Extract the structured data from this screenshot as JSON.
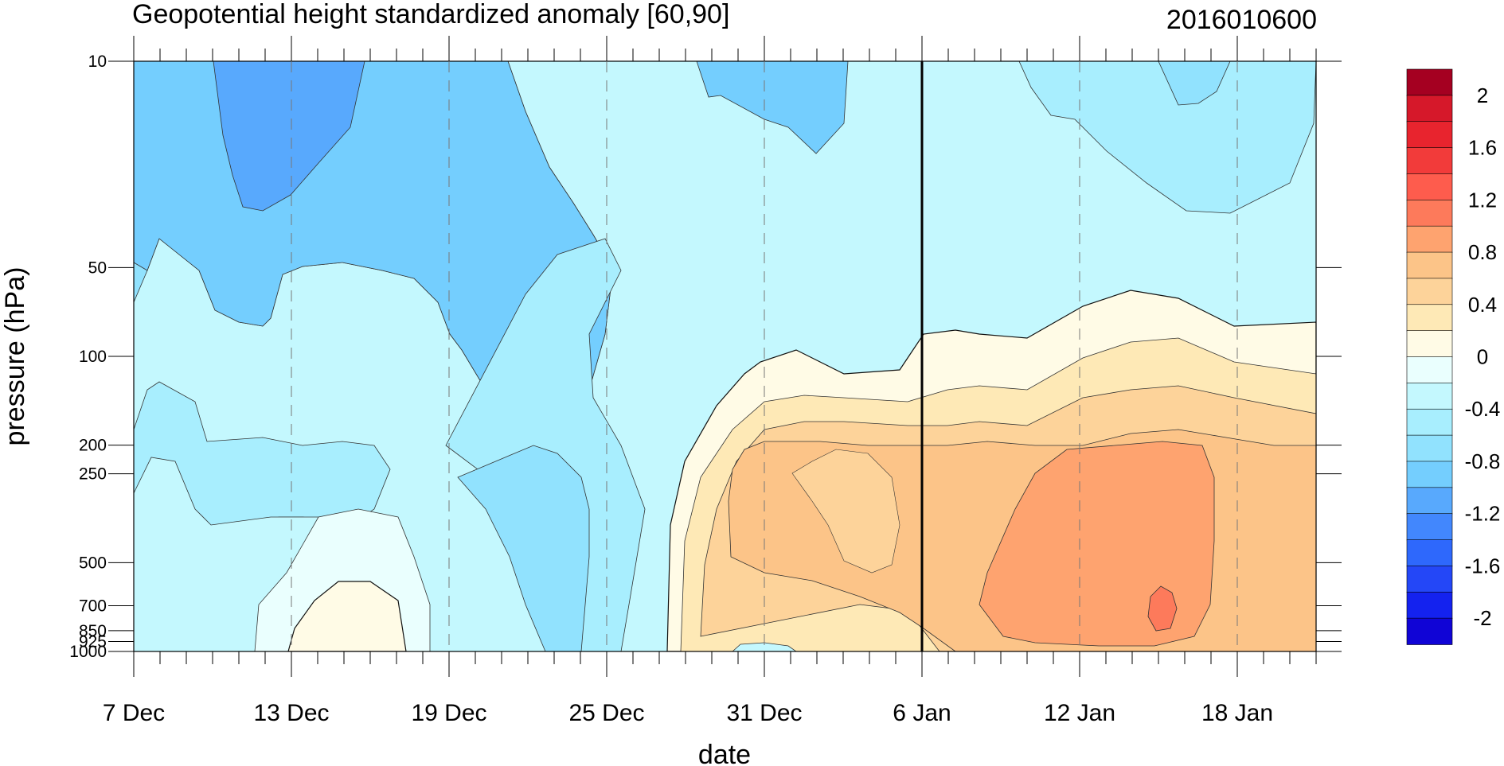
{
  "chart_data": {
    "type": "heatmap",
    "title": "Geopotential height standardized anomaly [60,90]",
    "date_stamp": "2016010600",
    "xlabel": "date",
    "ylabel": "pressure (hPa)",
    "x_ticks": [
      {
        "label": "7 Dec",
        "day": 0
      },
      {
        "label": "13 Dec",
        "day": 6
      },
      {
        "label": "19 Dec",
        "day": 12
      },
      {
        "label": "25 Dec",
        "day": 18
      },
      {
        "label": "31 Dec",
        "day": 24
      },
      {
        "label": "6 Jan",
        "day": 30
      },
      {
        "label": "12 Jan",
        "day": 36
      },
      {
        "label": "18 Jan",
        "day": 42
      }
    ],
    "x_range_days": [
      0,
      45
    ],
    "current_date_day": 30,
    "y_ticks": [
      {
        "label": "10",
        "p": 10
      },
      {
        "label": "50",
        "p": 50
      },
      {
        "label": "100",
        "p": 100
      },
      {
        "label": "200",
        "p": 200
      },
      {
        "label": "250",
        "p": 250
      },
      {
        "label": "500",
        "p": 500
      },
      {
        "label": "700",
        "p": 700
      },
      {
        "label": "850",
        "p": 850
      },
      {
        "label": "925",
        "p": 925
      },
      {
        "label": "1000",
        "p": 1000
      }
    ],
    "y_range": [
      10,
      1000
    ],
    "y_scale": "log",
    "colorbar_labels": [
      "2",
      "1.6",
      "1.2",
      "0.8",
      "0.4",
      "0",
      "-0.4",
      "-0.8",
      "-1.2",
      "-1.6",
      "-2"
    ],
    "colorbar_levels": [
      2.2,
      2.0,
      1.8,
      1.6,
      1.4,
      1.2,
      1.0,
      0.8,
      0.6,
      0.4,
      0.2,
      0,
      -0.2,
      -0.4,
      -0.6,
      -0.8,
      -1.0,
      -1.2,
      -1.4,
      -1.6,
      -1.8,
      -2.0,
      -2.2
    ],
    "colorbar_colors": [
      "#a50021",
      "#d6182a",
      "#e8242e",
      "#f23b3a",
      "#fe5c4d",
      "#fd7a5b",
      "#fea36f",
      "#fcc488",
      "#fdd39a",
      "#fee9b6",
      "#fffbe6",
      "#eafffe",
      "#c4f8fe",
      "#a8eefe",
      "#91e2fe",
      "#74cefe",
      "#58a9fd",
      "#4287fd",
      "#2e68fc",
      "#2447f7",
      "#1422ef",
      "#1004d6"
    ]
  }
}
